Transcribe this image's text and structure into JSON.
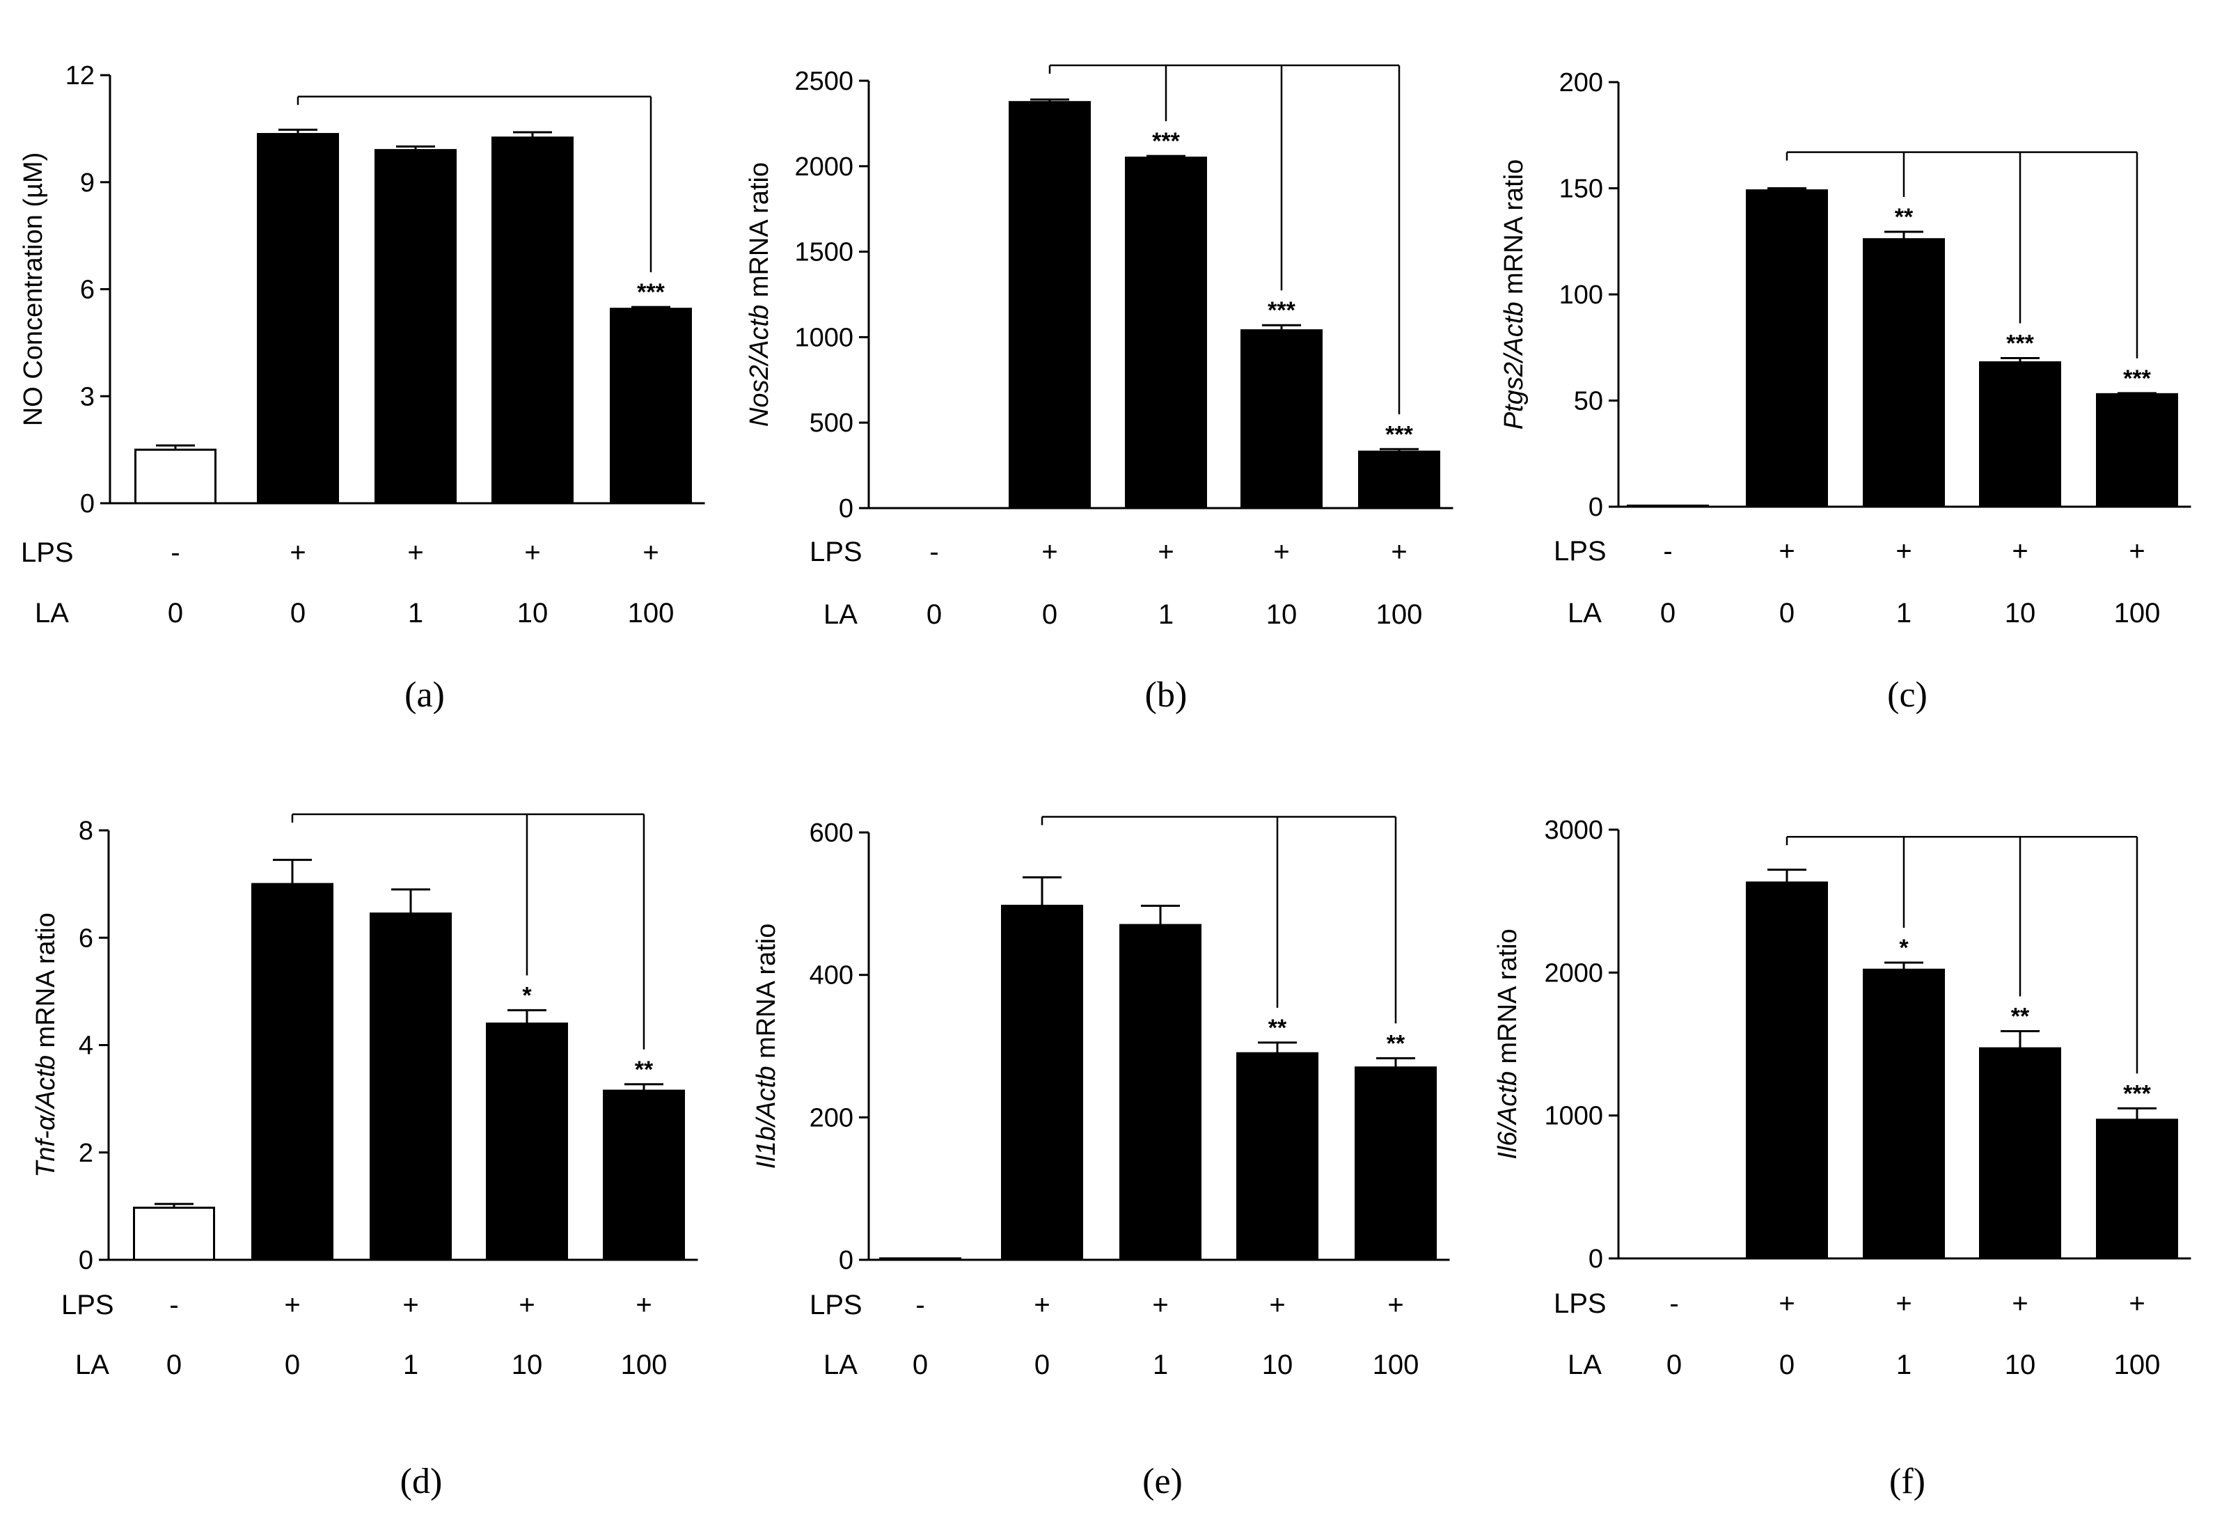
{
  "chart_data": [
    {
      "id": "a",
      "type": "bar",
      "panel_label": "(a)",
      "ylabel": [
        {
          "text": "NO Concentration (",
          "italic": false
        },
        {
          "text": "µ",
          "italic": false
        },
        {
          "text": "M)",
          "italic": false
        }
      ],
      "ylim": [
        0,
        12
      ],
      "yticks": [
        "0",
        "3",
        "6",
        "9",
        "12"
      ],
      "ytick_values": [
        0,
        3,
        6,
        9,
        12
      ],
      "lps": [
        "-",
        "+",
        "+",
        "+",
        "+"
      ],
      "la": [
        "0",
        "0",
        "1",
        "10",
        "100"
      ],
      "row_labels": [
        "LPS",
        "LA"
      ],
      "values": [
        1.5,
        10.35,
        9.9,
        10.25,
        5.45
      ],
      "errors": [
        0.12,
        0.12,
        0.1,
        0.15,
        0.05
      ],
      "fills": [
        "#ffffff",
        "#000000",
        "#000000",
        "#000000",
        "#000000"
      ],
      "significance": [
        "",
        "",
        "",
        "",
        "***"
      ],
      "bracket_from": 1,
      "bracket_to": [
        4
      ],
      "bracket_y": 11.4
    },
    {
      "id": "b",
      "type": "bar",
      "panel_label": "(b)",
      "ylabel": [
        {
          "text": "Nos2/Actb",
          "italic": true
        },
        {
          "text": " mRNA ratio",
          "italic": false
        }
      ],
      "ylim": [
        0,
        2500
      ],
      "yticks": [
        "0",
        "500",
        "1000",
        "1500",
        "2000",
        "2500"
      ],
      "ytick_values": [
        0,
        500,
        1000,
        1500,
        2000,
        2500
      ],
      "lps": [
        "-",
        "+",
        "+",
        "+",
        "+"
      ],
      "la": [
        "0",
        "0",
        "1",
        "10",
        "100"
      ],
      "row_labels": [
        "LPS",
        "LA"
      ],
      "values": [
        0,
        2375,
        2050,
        1040,
        330
      ],
      "errors": [
        0,
        15,
        10,
        30,
        15
      ],
      "fills": [
        "#ffffff",
        "#000000",
        "#000000",
        "#000000",
        "#000000"
      ],
      "significance": [
        "",
        "",
        "***",
        "***",
        "***"
      ],
      "bracket_from": 1,
      "bracket_to": [
        2,
        3,
        4
      ],
      "bracket_y": 2590
    },
    {
      "id": "c",
      "type": "bar",
      "panel_label": "(c)",
      "ylabel": [
        {
          "text": "Ptgs2/Actb",
          "italic": true
        },
        {
          "text": " mRNA ratio",
          "italic": false
        }
      ],
      "ylim": [
        0,
        200
      ],
      "yticks": [
        "0",
        "50",
        "100",
        "150",
        "200"
      ],
      "ytick_values": [
        0,
        50,
        100,
        150,
        200
      ],
      "lps": [
        "-",
        "+",
        "+",
        "+",
        "+"
      ],
      "la": [
        "0",
        "0",
        "1",
        "10",
        "100"
      ],
      "row_labels": [
        "LPS",
        "LA"
      ],
      "values": [
        0.5,
        149,
        126,
        68,
        53
      ],
      "errors": [
        0,
        1,
        3.5,
        2,
        0.5
      ],
      "fills": [
        "#ffffff",
        "#000000",
        "#000000",
        "#000000",
        "#000000"
      ],
      "significance": [
        "",
        "",
        "**",
        "***",
        "***"
      ],
      "bracket_from": 1,
      "bracket_to": [
        2,
        3,
        4
      ],
      "bracket_y": 167
    },
    {
      "id": "d",
      "type": "bar",
      "panel_label": "(d)",
      "ylabel": [
        {
          "text": "Tnf-α/Actb",
          "italic": true
        },
        {
          "text": " mRNA ratio",
          "italic": false
        }
      ],
      "ylim": [
        0,
        8
      ],
      "yticks": [
        "0",
        "2",
        "4",
        "6",
        "8"
      ],
      "ytick_values": [
        0,
        2,
        4,
        6,
        8
      ],
      "lps": [
        "-",
        "+",
        "+",
        "+",
        "+"
      ],
      "la": [
        "0",
        "0",
        "1",
        "10",
        "100"
      ],
      "row_labels": [
        "LPS",
        "LA"
      ],
      "values": [
        0.97,
        7.0,
        6.45,
        4.4,
        3.15
      ],
      "errors": [
        0.07,
        0.45,
        0.45,
        0.25,
        0.12
      ],
      "fills": [
        "#ffffff",
        "#000000",
        "#000000",
        "#000000",
        "#000000"
      ],
      "significance": [
        "",
        "",
        "",
        "*",
        "**"
      ],
      "bracket_from": 1,
      "bracket_to": [
        3,
        4
      ],
      "bracket_y": 8.3
    },
    {
      "id": "e",
      "type": "bar",
      "panel_label": "(e)",
      "ylabel": [
        {
          "text": "Il1b/Actb",
          "italic": true
        },
        {
          "text": " mRNA ratio",
          "italic": false
        }
      ],
      "ylim": [
        0,
        600
      ],
      "yticks": [
        "0",
        "200",
        "400",
        "600"
      ],
      "ytick_values": [
        0,
        200,
        400,
        600
      ],
      "lps": [
        "-",
        "+",
        "+",
        "+",
        "+"
      ],
      "la": [
        "0",
        "0",
        "1",
        "10",
        "100"
      ],
      "row_labels": [
        "LPS",
        "LA"
      ],
      "values": [
        2,
        497,
        470,
        290,
        270
      ],
      "errors": [
        0,
        40,
        27,
        15,
        13
      ],
      "fills": [
        "#ffffff",
        "#000000",
        "#000000",
        "#000000",
        "#000000"
      ],
      "significance": [
        "",
        "",
        "",
        "**",
        "**"
      ],
      "bracket_from": 1,
      "bracket_to": [
        3,
        4
      ],
      "bracket_y": 622
    },
    {
      "id": "f",
      "type": "bar",
      "panel_label": "(f)",
      "ylabel": [
        {
          "text": "Il6/Actb",
          "italic": true
        },
        {
          "text": " mRNA ratio",
          "italic": false
        }
      ],
      "ylim": [
        0,
        3000
      ],
      "yticks": [
        "0",
        "1000",
        "2000",
        "3000"
      ],
      "ytick_values": [
        0,
        1000,
        2000,
        3000
      ],
      "lps": [
        "-",
        "+",
        "+",
        "+",
        "+"
      ],
      "la": [
        "0",
        "0",
        "1",
        "10",
        "100"
      ],
      "row_labels": [
        "LPS",
        "LA"
      ],
      "values": [
        0,
        2630,
        2020,
        1470,
        970
      ],
      "errors": [
        0,
        90,
        50,
        120,
        80
      ],
      "fills": [
        "#ffffff",
        "#000000",
        "#000000",
        "#000000",
        "#000000"
      ],
      "significance": [
        "",
        "",
        "*",
        "**",
        "***"
      ],
      "bracket_from": 1,
      "bracket_to": [
        2,
        3,
        4
      ],
      "bracket_y": 2950
    }
  ]
}
